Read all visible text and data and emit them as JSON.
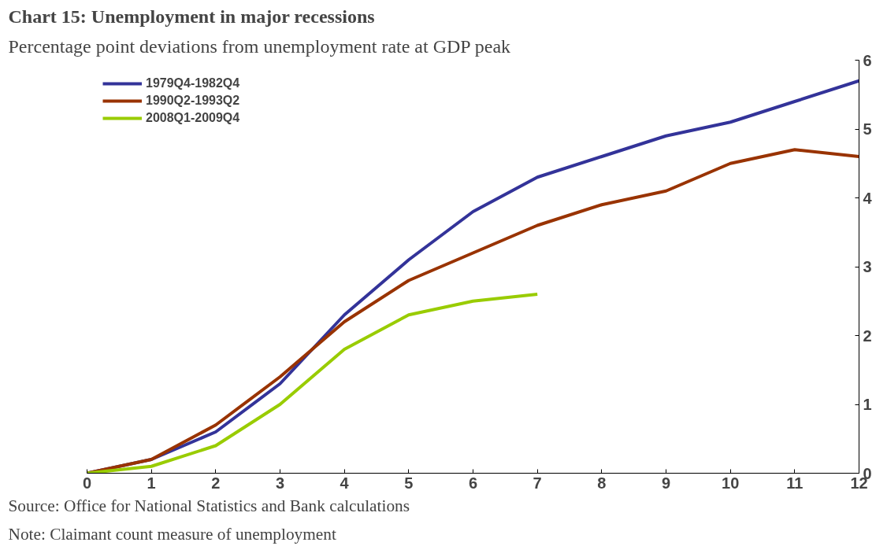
{
  "chart_data": {
    "type": "line",
    "title": "Chart 15: Unemployment in major recessions",
    "subtitle": "Percentage point deviations from unemployment rate at GDP peak",
    "x": [
      0,
      1,
      2,
      3,
      4,
      5,
      6,
      7,
      8,
      9,
      10,
      11,
      12
    ],
    "series": [
      {
        "name": "1979Q4-1982Q4",
        "color": "#333399",
        "values": [
          0,
          0.2,
          0.6,
          1.3,
          2.3,
          3.1,
          3.8,
          4.3,
          4.6,
          4.9,
          5.1,
          5.4,
          5.7
        ]
      },
      {
        "name": "1990Q2-1993Q2",
        "color": "#993300",
        "values": [
          0,
          0.2,
          0.7,
          1.4,
          2.2,
          2.8,
          3.2,
          3.6,
          3.9,
          4.1,
          4.5,
          4.7,
          4.6
        ]
      },
      {
        "name": "2008Q1-2009Q4",
        "color": "#99cc00",
        "values": [
          0,
          0.1,
          0.4,
          1.0,
          1.8,
          2.3,
          2.5,
          2.6,
          null,
          null,
          null,
          null,
          null
        ]
      }
    ],
    "xlim": [
      0,
      12
    ],
    "xticks": [
      0,
      1,
      2,
      3,
      4,
      5,
      6,
      7,
      8,
      9,
      10,
      11,
      12
    ],
    "ylim": [
      0,
      6
    ],
    "yticks": [
      0,
      1,
      2,
      3,
      4,
      5,
      6
    ],
    "grid": false,
    "legend": "top left",
    "marker": "none",
    "line_style": "solid",
    "annotations": [
      "Source: Office for National Statistics and Bank calculations",
      "Note: Claimant count measure of unemployment"
    ]
  }
}
